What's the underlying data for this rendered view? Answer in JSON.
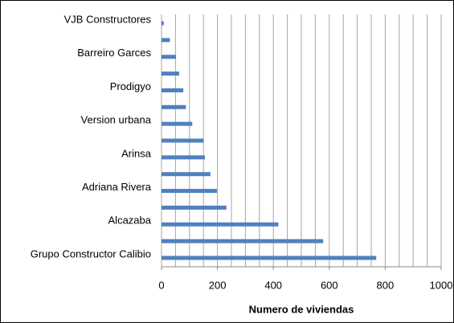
{
  "chart_data": {
    "type": "hbar",
    "x_label": "Numero de viviendas",
    "categories": [
      "Grupo Constructor Calibio",
      null,
      "Alcazaba",
      null,
      "Adriana Rivera",
      null,
      "Arinsa",
      null,
      "Version urbana",
      null,
      "Prodigyo",
      null,
      "Barreiro Garces",
      null,
      "VJB Constructores"
    ],
    "values": [
      768,
      578,
      418,
      232,
      198,
      175,
      155,
      150,
      110,
      87,
      78,
      63,
      52,
      30,
      8
    ],
    "color": "#4f81bd",
    "xlim": [
      0,
      1000
    ],
    "xticks": [
      0,
      200,
      400,
      600,
      800,
      1000
    ],
    "grid_lines": [
      0,
      50,
      100,
      150,
      200,
      250,
      300,
      350,
      400,
      450,
      500,
      550,
      600,
      650,
      700,
      750,
      800,
      850,
      900,
      950,
      1000
    ],
    "grid": true
  }
}
